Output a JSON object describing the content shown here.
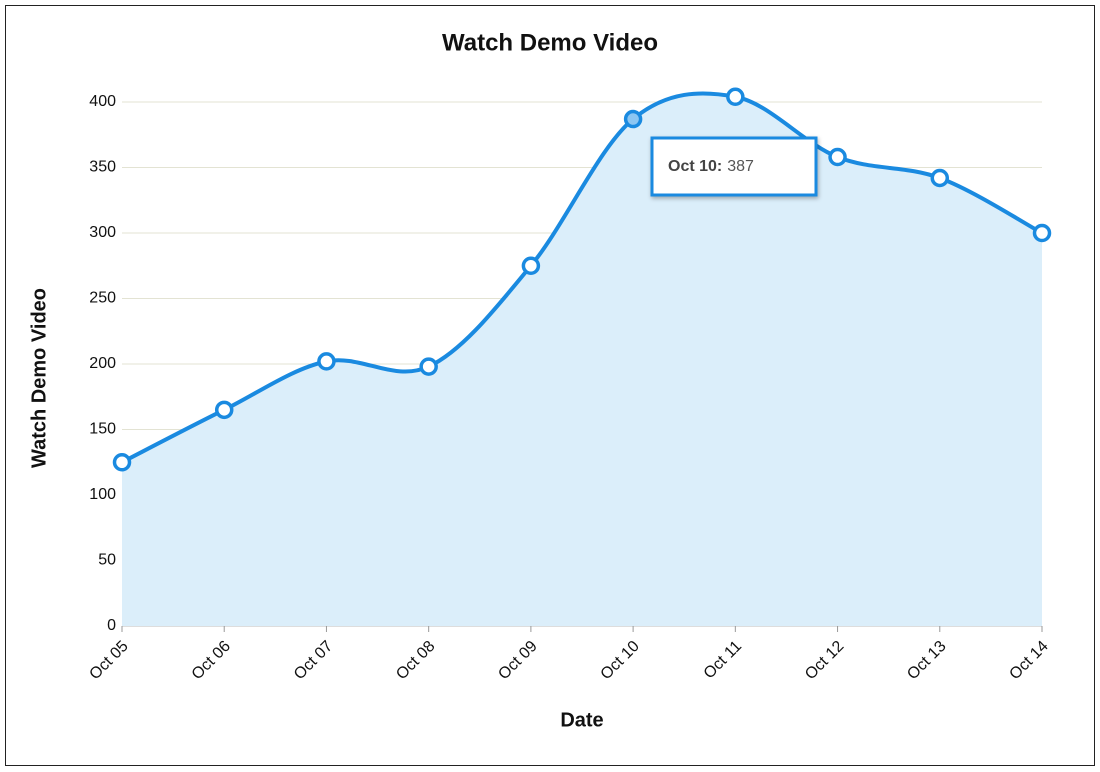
{
  "chart_data": {
    "type": "area",
    "title": "Watch Demo Video",
    "xlabel": "Date",
    "ylabel": "Watch Demo Video",
    "categories": [
      "Oct 05",
      "Oct 06",
      "Oct 07",
      "Oct 08",
      "Oct 09",
      "Oct 10",
      "Oct 11",
      "Oct 12",
      "Oct 13",
      "Oct 14"
    ],
    "series": [
      {
        "name": "Watch Demo Video",
        "color": "#1a8ae0",
        "fill": "#dbeefa",
        "values": [
          125,
          165,
          202,
          198,
          275,
          387,
          404,
          358,
          342,
          300
        ]
      }
    ],
    "ylim": [
      0,
      400
    ],
    "yticks": [
      0,
      50,
      100,
      150,
      200,
      250,
      300,
      350,
      400
    ],
    "grid": true,
    "tooltip": {
      "label": "Oct 10:",
      "value": 387,
      "index": 5
    }
  }
}
